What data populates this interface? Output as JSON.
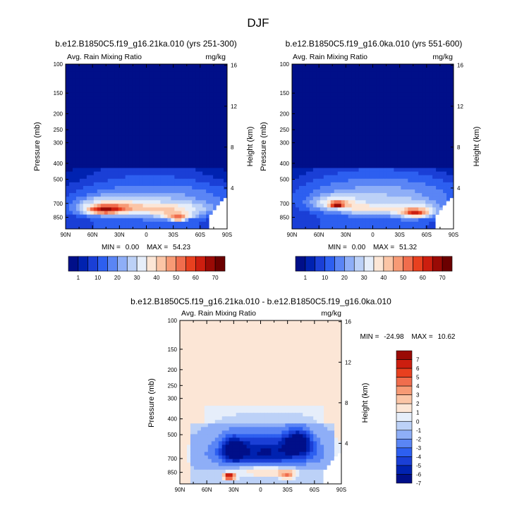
{
  "page": {
    "title": "DJF"
  },
  "colors": {
    "abs_levels": [
      "#000f89",
      "#0022b0",
      "#1a3fd6",
      "#2d5ff0",
      "#5a85f5",
      "#8eaef7",
      "#bcd1f7",
      "#e6eefa",
      "#fce6d6",
      "#fbc5a6",
      "#f79a75",
      "#f06d4d",
      "#e8401f",
      "#cc1e0f",
      "#9a0a05",
      "#6b0000"
    ],
    "diff_levels": [
      "#000f89",
      "#0022b0",
      "#1a3fd6",
      "#2d5ff0",
      "#5a85f5",
      "#8eaef7",
      "#bcd1f7",
      "#e6eefa",
      "#fce6d6",
      "#fbc5a6",
      "#f79a75",
      "#f06d4d",
      "#e8401f",
      "#cc1e0f",
      "#9a0a05"
    ]
  },
  "chart_data": [
    {
      "type": "heatmap",
      "title": "b.e12.B1850C5.f19_g16.21ka.010 (yrs 251-300)",
      "left_label": "Avg. Rain Mixing Ratio",
      "right_label": "mg/kg",
      "xlabel": "",
      "ylabel": "Pressure (mb)",
      "ylabel_right": "Height (km)",
      "x_ticks": [
        "90N",
        "60N",
        "30N",
        "0",
        "30S",
        "60S",
        "90S"
      ],
      "y_ticks": [
        "100",
        "150",
        "200",
        "250",
        "300",
        "400",
        "500",
        "700",
        "850"
      ],
      "y_ticks_right": [
        "16",
        "12",
        "8",
        "4"
      ],
      "stats": {
        "min_label": "MIN =",
        "min": "0.00",
        "max_label": "MAX =",
        "max": "54.23"
      },
      "blobs": [
        {
          "lat": -15,
          "p": 650,
          "w": 150,
          "h": 210,
          "v": 6
        },
        {
          "lat": -30,
          "p": 760,
          "w": 80,
          "h": 140,
          "v": 12
        },
        {
          "lat": 0,
          "p": 760,
          "w": 90,
          "h": 120,
          "v": 14
        },
        {
          "lat": 40,
          "p": 720,
          "w": 60,
          "h": 140,
          "v": 20
        },
        {
          "lat": 48,
          "p": 770,
          "w": 38,
          "h": 90,
          "v": 35
        },
        {
          "lat": -34,
          "p": 830,
          "w": 30,
          "h": 60,
          "v": 32
        },
        {
          "lat": -35,
          "p": 870,
          "w": 14,
          "h": 30,
          "v": 52
        }
      ]
    },
    {
      "type": "heatmap",
      "title": "b.e12.B1850C5.f19_g16.0ka.010 (yrs 551-600)",
      "left_label": "Avg. Rain Mixing Ratio",
      "right_label": "mg/kg",
      "xlabel": "",
      "ylabel": "Pressure (mb)",
      "ylabel_right": "Height (km)",
      "x_ticks": [
        "90N",
        "60N",
        "30N",
        "0",
        "30S",
        "60S",
        "90S"
      ],
      "y_ticks": [
        "100",
        "150",
        "200",
        "250",
        "300",
        "400",
        "500",
        "700",
        "850"
      ],
      "y_ticks_right": [
        "16",
        "12",
        "8",
        "4"
      ],
      "stats": {
        "min_label": "MIN =",
        "min": "0.00",
        "max_label": "MAX =",
        "max": "51.32"
      },
      "blobs": [
        {
          "lat": -10,
          "p": 620,
          "w": 150,
          "h": 240,
          "v": 7
        },
        {
          "lat": -40,
          "p": 750,
          "w": 70,
          "h": 150,
          "v": 14
        },
        {
          "lat": -48,
          "p": 800,
          "w": 30,
          "h": 90,
          "v": 35
        },
        {
          "lat": 5,
          "p": 760,
          "w": 50,
          "h": 100,
          "v": 15
        },
        {
          "lat": 38,
          "p": 700,
          "w": 50,
          "h": 130,
          "v": 20
        },
        {
          "lat": 40,
          "p": 710,
          "w": 16,
          "h": 40,
          "v": 45
        }
      ]
    },
    {
      "type": "heatmap",
      "title": "b.e12.B1850C5.f19_g16.21ka.010 - b.e12.B1850C5.f19_g16.0ka.010",
      "left_label": "Avg. Rain Mixing Ratio",
      "right_label": "mg/kg",
      "xlabel": "",
      "ylabel": "Pressure (mb)",
      "ylabel_right": "Height (km)",
      "x_ticks": [
        "90N",
        "60N",
        "30N",
        "0",
        "30S",
        "60S",
        "90S"
      ],
      "y_ticks": [
        "100",
        "150",
        "200",
        "250",
        "300",
        "400",
        "500",
        "700",
        "850"
      ],
      "y_ticks_right": [
        "16",
        "12",
        "8",
        "4"
      ],
      "stats": {
        "min_label": "MIN =",
        "min": "-24.98",
        "max_label": "MAX =",
        "max": "10.62"
      }
    }
  ],
  "colorbars": {
    "abs": {
      "labels": [
        "1",
        "10",
        "20",
        "30",
        "40",
        "50",
        "60",
        "70"
      ]
    },
    "diff": {
      "labels": [
        "7",
        "6",
        "5",
        "4",
        "3",
        "2",
        "1",
        "0",
        "-1",
        "-2",
        "-3",
        "-4",
        "-5",
        "-6",
        "-7"
      ]
    }
  }
}
